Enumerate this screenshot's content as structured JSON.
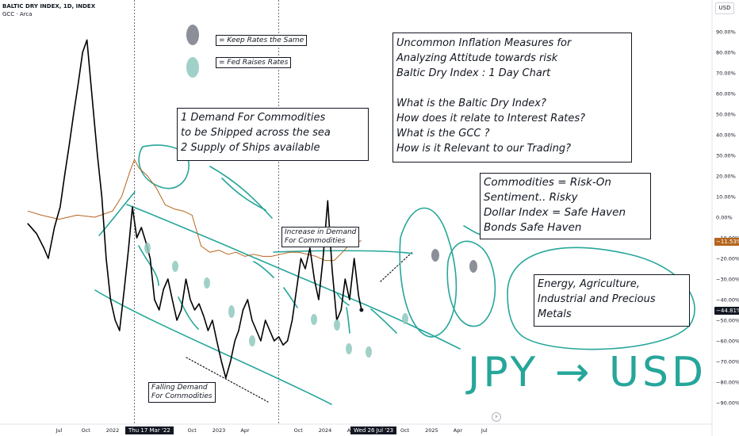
{
  "legend": {
    "symbol": "BALTIC DRY INDEX, 1D, INDEX",
    "compare": "GCC · Arca"
  },
  "currency_label": "USD",
  "price_tags": {
    "gcc": "−11.53%",
    "bdi": "−44.81%"
  },
  "date_tags": [
    "Thu 17 Mar '22",
    "Wed 26 Jul '23"
  ],
  "key": {
    "keep": "= Keep Rates the Same",
    "raise": "= Fed Raises Rates"
  },
  "notes": {
    "demand_supply": [
      "1 Demand For Commodities",
      "to be Shipped across the sea",
      "2 Supply of Ships available"
    ],
    "title_box": [
      "Uncommon Inflation Measures for",
      "Analyzing Attitude towards risk",
      "Baltic Dry Index : 1 Day Chart",
      "",
      "What is the Baltic Dry Index?",
      "How does it relate to Interest Rates?",
      "What is the GCC ?",
      "How is it Relevant to our Trading?"
    ],
    "risk_box": [
      "Commodities = Risk-On",
      "Sentiment.. Risky",
      "Dollar Index = Safe Haven",
      "Bonds Safe Haven"
    ],
    "energy_box": [
      "Energy, Agriculture,",
      "Industrial and Precious",
      "Metals"
    ],
    "increase": [
      "Increase in Demand",
      "For Commodities"
    ],
    "falling": [
      "Falling Demand",
      "For Commodities"
    ],
    "handwriting": "JPY → USD"
  },
  "colors": {
    "bdi": "#000000",
    "gcc": "#b5651d",
    "drawing": "#26a69a",
    "keep_dot": "#787b86",
    "raise_dot": "#8fc9be"
  },
  "chart_data": {
    "type": "line",
    "x_tick_labels": [
      "Jul",
      "Oct",
      "2022",
      "Jul",
      "Oct",
      "2023",
      "Apr",
      "Oct",
      "2024",
      "Apr",
      "Jul",
      "Oct",
      "2025",
      "Apr",
      "Jul"
    ],
    "y_tick_labels": [
      "90.00%",
      "80.00%",
      "70.00%",
      "60.00%",
      "50.00%",
      "40.00%",
      "30.00%",
      "20.00%",
      "10.00%",
      "0.00%",
      "−10.00%",
      "−20.00%",
      "−30.00%",
      "−40.00%",
      "−50.00%",
      "−60.00%",
      "−70.00%",
      "−80.00%",
      "−90.00%"
    ],
    "ylim": [
      -95,
      95
    ],
    "y_unit": "%",
    "series": [
      {
        "name": "BALTIC DRY INDEX",
        "x": [
          "2021-03-15",
          "2021-04-15",
          "2021-05-10",
          "2021-05-25",
          "2021-06-15",
          "2021-07-05",
          "2021-07-20",
          "2021-08-05",
          "2021-08-20",
          "2021-09-05",
          "2021-09-20",
          "2021-10-05",
          "2021-10-15",
          "2021-10-28",
          "2021-11-10",
          "2021-11-25",
          "2021-12-10",
          "2021-12-25",
          "2022-01-10",
          "2022-01-25",
          "2022-02-10",
          "2022-02-25",
          "2022-03-10",
          "2022-03-25",
          "2022-04-10",
          "2022-04-25",
          "2022-05-10",
          "2022-05-25",
          "2022-06-10",
          "2022-06-25",
          "2022-07-10",
          "2022-07-25",
          "2022-08-10",
          "2022-08-25",
          "2022-09-10",
          "2022-09-25",
          "2022-10-10",
          "2022-10-25",
          "2022-11-10",
          "2022-11-25",
          "2022-12-10",
          "2022-12-25",
          "2023-01-10",
          "2023-01-25",
          "2023-02-10",
          "2023-02-25",
          "2023-03-10",
          "2023-03-25",
          "2023-04-10",
          "2023-04-25",
          "2023-05-10",
          "2023-05-25",
          "2023-06-10",
          "2023-06-25",
          "2023-07-10",
          "2023-07-26",
          "2023-08-10",
          "2023-08-25",
          "2023-09-10",
          "2023-09-25",
          "2023-10-10",
          "2023-10-25",
          "2023-11-10",
          "2023-11-25",
          "2023-12-10",
          "2023-12-25",
          "2024-01-10",
          "2024-01-25",
          "2024-02-10",
          "2024-02-25",
          "2024-03-10",
          "2024-03-25",
          "2024-04-10",
          "2024-04-25",
          "2024-05-05"
        ],
        "values": [
          -3,
          -8,
          -15,
          -20,
          -5,
          5,
          20,
          35,
          50,
          65,
          80,
          86,
          70,
          50,
          30,
          10,
          -20,
          -40,
          -50,
          -55,
          -35,
          -15,
          5,
          -10,
          -5,
          -12,
          -20,
          -40,
          -45,
          -35,
          -30,
          -40,
          -50,
          -45,
          -30,
          -40,
          -45,
          -42,
          -48,
          -55,
          -50,
          -60,
          -70,
          -78,
          -70,
          -60,
          -55,
          -45,
          -40,
          -50,
          -55,
          -60,
          -50,
          -55,
          -60,
          -58,
          -62,
          -60,
          -50,
          -35,
          -20,
          -25,
          -15,
          -30,
          -40,
          -20,
          8,
          -25,
          -50,
          -45,
          -30,
          -40,
          -20,
          -38,
          -45
        ]
      },
      {
        "name": "GCC",
        "x": [
          "2021-03-15",
          "2021-05-01",
          "2021-07-01",
          "2021-09-01",
          "2021-11-01",
          "2022-01-01",
          "2022-02-01",
          "2022-03-01",
          "2022-03-17",
          "2022-04-01",
          "2022-05-01",
          "2022-06-01",
          "2022-07-01",
          "2022-08-01",
          "2022-09-01",
          "2022-10-01",
          "2022-11-01",
          "2022-12-01",
          "2023-01-01",
          "2023-02-01",
          "2023-03-01",
          "2023-04-01",
          "2023-05-01",
          "2023-06-01",
          "2023-07-01",
          "2023-08-01",
          "2023-09-01",
          "2023-10-01",
          "2023-11-01",
          "2023-12-01",
          "2024-01-01",
          "2024-02-01",
          "2024-03-01",
          "2024-04-01",
          "2024-05-05"
        ],
        "values": [
          3,
          1,
          -1,
          1,
          0,
          3,
          10,
          22,
          28,
          24,
          20,
          14,
          6,
          4,
          3,
          1,
          -14,
          -17,
          -16,
          -18,
          -17,
          -19,
          -18,
          -19,
          -19,
          -18,
          -17,
          -17,
          -18,
          -19,
          -21,
          -21,
          -17,
          -12,
          -11.5
        ]
      }
    ]
  }
}
